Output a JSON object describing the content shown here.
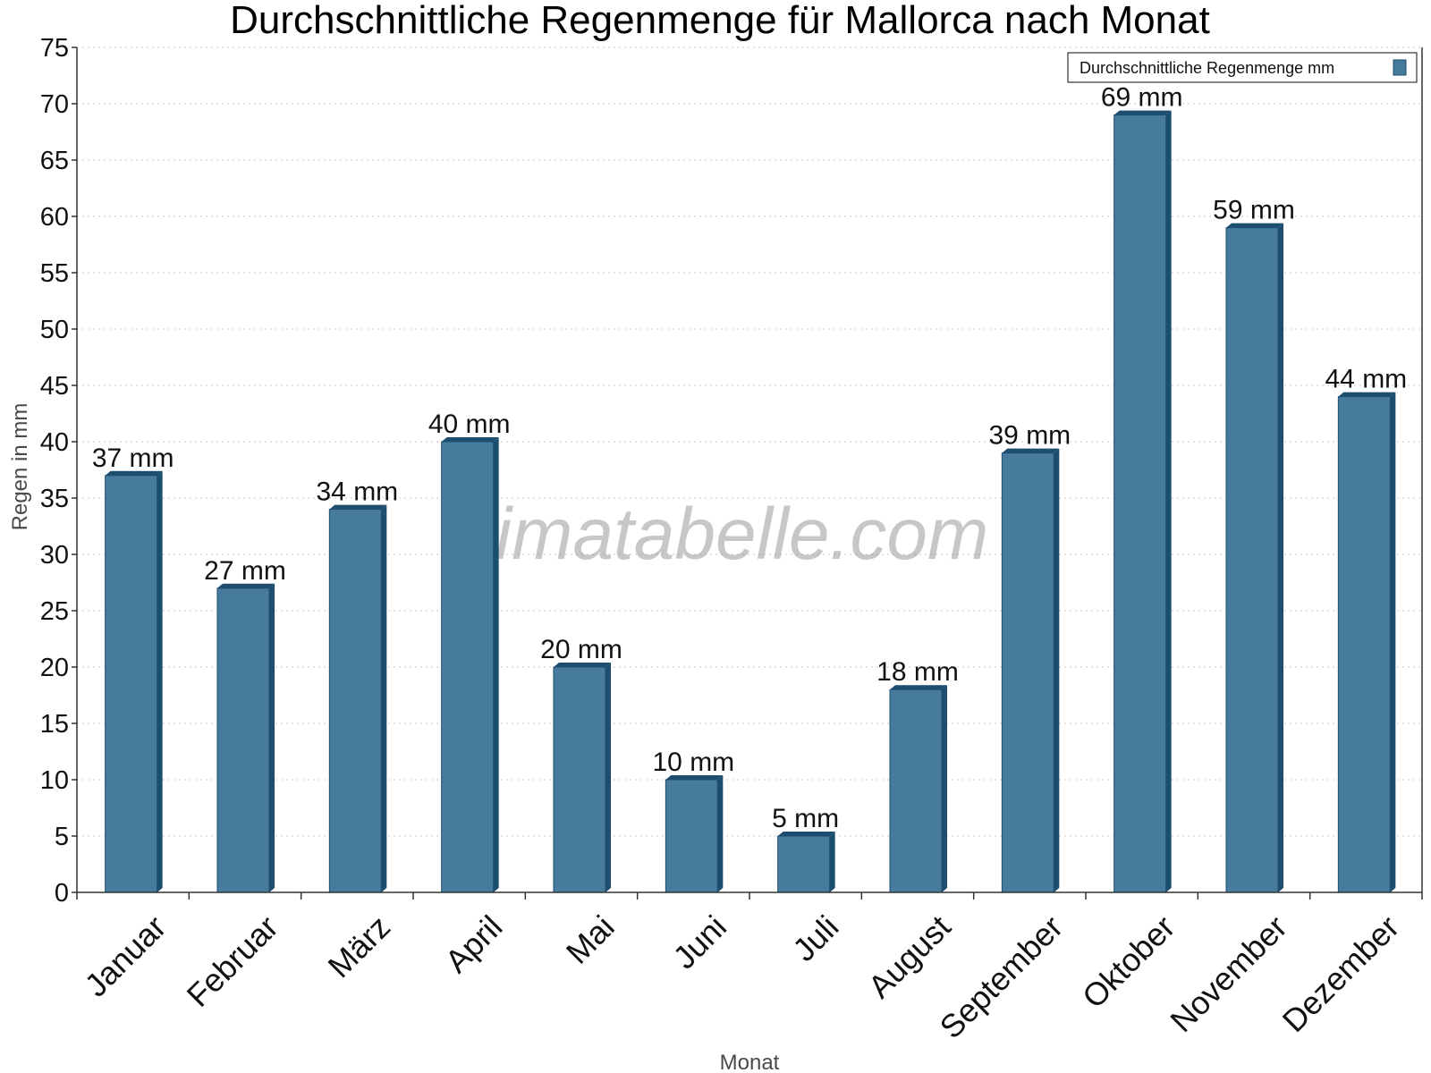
{
  "chart_data": {
    "type": "bar",
    "title": "Durchschnittliche Regenmenge für Mallorca nach Monat",
    "xlabel": "Monat",
    "ylabel": "Regen in mm",
    "ylim": [
      0,
      75
    ],
    "ytick_step": 5,
    "grid": true,
    "legend_position": "top-right",
    "watermark": "klimatabelle.com",
    "categories": [
      "Januar",
      "Februar",
      "März",
      "April",
      "Mai",
      "Juni",
      "Juli",
      "August",
      "September",
      "Oktober",
      "November",
      "Dezember"
    ],
    "series": [
      {
        "name": "Durchschnittliche Regenmenge mm",
        "color": "#477b9e",
        "side_color": "#1d4d6f",
        "values": [
          37,
          27,
          34,
          40,
          20,
          10,
          5,
          18,
          39,
          69,
          59,
          44
        ],
        "labels": [
          "37 mm",
          "27 mm",
          "34 mm",
          "40 mm",
          "20 mm",
          "10 mm",
          "5 mm",
          "18 mm",
          "39 mm",
          "69 mm",
          "59 mm",
          "44 mm"
        ]
      }
    ]
  }
}
